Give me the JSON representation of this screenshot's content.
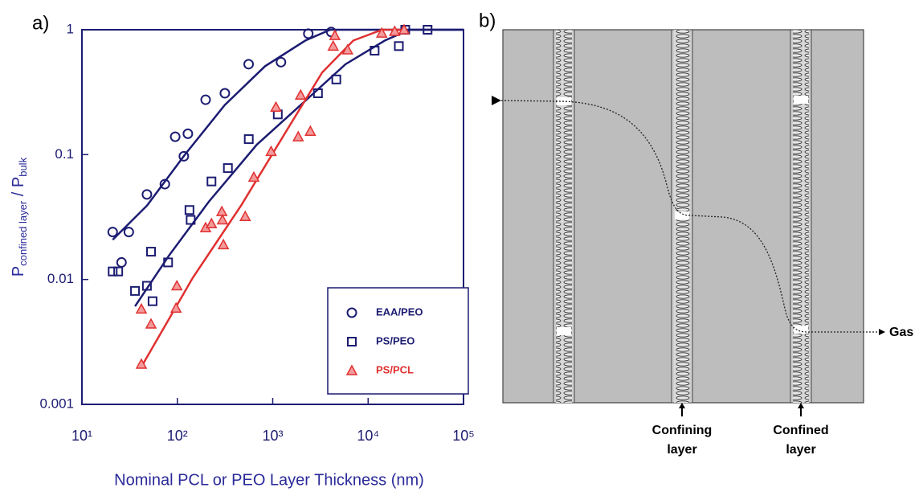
{
  "chart_data": {
    "type": "scatter",
    "panel_label": "a)",
    "xlabel": "Nominal PCL or PEO Layer Thickness (nm)",
    "ylabel": [
      "P",
      "confined layer",
      " / P",
      "bulk"
    ],
    "xscale": "log",
    "yscale": "log",
    "xlim": [
      10,
      100000
    ],
    "ylim": [
      0.001,
      1
    ],
    "xticks": [
      {
        "value": 10,
        "label": "10¹"
      },
      {
        "value": 100,
        "label": "10²"
      },
      {
        "value": 1000,
        "label": "10³"
      },
      {
        "value": 10000,
        "label": "10⁴"
      },
      {
        "value": 100000,
        "label": "10⁵"
      }
    ],
    "yticks": [
      0.001,
      0.01,
      0.1,
      1
    ],
    "legend": "lower right",
    "series": [
      {
        "name": "EAA/PEO",
        "color": "#1c1c72",
        "marker": "circle",
        "x": [
          21,
          26,
          31,
          48,
          74,
          95,
          117,
          129,
          198,
          315,
          559,
          1220,
          2360,
          4100
        ],
        "values": [
          0.024,
          0.0137,
          0.024,
          0.048,
          0.058,
          0.139,
          0.097,
          0.147,
          0.275,
          0.31,
          0.53,
          0.55,
          0.93,
          0.96
        ],
        "fit_x": [
          21,
          48,
          120,
          315,
          830,
          2200,
          4000,
          100000
        ],
        "fit_y": [
          0.0208,
          0.039,
          0.1,
          0.25,
          0.51,
          0.82,
          1,
          1
        ]
      },
      {
        "name": "PS/PEO",
        "color": "#1c1c72",
        "marker": "square",
        "x": [
          21,
          24,
          36,
          48,
          55,
          53,
          80,
          134,
          138,
          228,
          339,
          561,
          1130,
          2980,
          4640,
          11700,
          21000,
          42000,
          24500
        ],
        "values": [
          0.0116,
          0.0116,
          0.0081,
          0.0089,
          0.0067,
          0.0167,
          0.0137,
          0.036,
          0.03,
          0.061,
          0.078,
          0.133,
          0.21,
          0.31,
          0.4,
          0.68,
          0.74,
          1,
          1
        ],
        "fit_x": [
          36,
          81,
          214,
          680,
          2200,
          5800,
          15000,
          27000,
          100000
        ],
        "fit_y": [
          0.0061,
          0.0154,
          0.042,
          0.12,
          0.27,
          0.53,
          0.82,
          1,
          1
        ]
      },
      {
        "name": "PS/PCL",
        "color": "#e03030",
        "marker": "triangle",
        "x": [
          42,
          42,
          53,
          97,
          99,
          198,
          228,
          293,
          297,
          304,
          515,
          634,
          962,
          1080,
          1960,
          1850,
          2480,
          4300,
          4480,
          6100,
          13900,
          19000,
          23800
        ],
        "values": [
          0.0021,
          0.0058,
          0.0044,
          0.0059,
          0.0089,
          0.026,
          0.028,
          0.035,
          0.03,
          0.019,
          0.032,
          0.066,
          0.106,
          0.24,
          0.3,
          0.139,
          0.154,
          0.74,
          0.9,
          0.69,
          0.94,
          0.97,
          1
        ],
        "fit_x": [
          42,
          145,
          465,
          1500,
          3300,
          7000,
          14000,
          22000
        ],
        "fit_y": [
          0.002,
          0.0103,
          0.039,
          0.17,
          0.455,
          0.82,
          1,
          1
        ]
      }
    ]
  },
  "panel_b": {
    "label": "b)",
    "gas": "Gas",
    "layer_labels": [
      {
        "lines": [
          "Confining",
          "layer"
        ]
      },
      {
        "lines": [
          "Confined",
          "layer"
        ]
      }
    ]
  }
}
